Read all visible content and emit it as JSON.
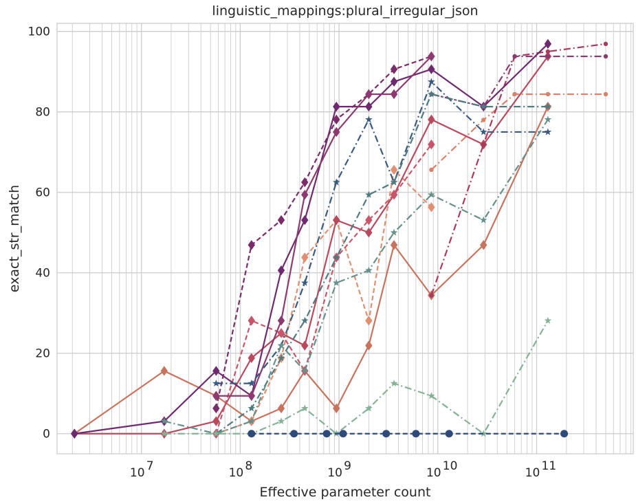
{
  "chart_data": {
    "type": "line",
    "title": "linguistic_mappings:plural_irregular_json",
    "xlabel": "Effective parameter count",
    "ylabel": "exact_str_match",
    "xscale": "log",
    "xlim": [
      1400000.0,
      950000000000.0
    ],
    "ylim": [
      -5,
      102
    ],
    "x_ticks": [
      {
        "value": 10000000.0,
        "mantissa": "10",
        "exp": "7"
      },
      {
        "value": 100000000.0,
        "mantissa": "10",
        "exp": "8"
      },
      {
        "value": 1000000000.0,
        "mantissa": "10",
        "exp": "9"
      },
      {
        "value": 10000000000.0,
        "mantissa": "10",
        "exp": "10"
      },
      {
        "value": 100000000000.0,
        "mantissa": "10",
        "exp": "11"
      }
    ],
    "y_ticks": [
      0,
      20,
      40,
      60,
      80,
      100
    ],
    "grid": true,
    "legend": "none",
    "series": [
      {
        "color": "#c8735e",
        "dash": "solid",
        "marker": "diamond",
        "x": [
          2100000.0,
          17000000.0,
          57000000.0,
          130000000.0,
          260000000.0,
          450000000.0,
          940000000.0,
          2000000000.0,
          3600000000.0,
          8600000000.0,
          29000000000.0,
          130000000000.0
        ],
        "y": [
          0,
          15.6,
          9.4,
          3.1,
          6.3,
          15.6,
          6.3,
          21.9,
          46.9,
          34.4,
          46.9,
          81.3
        ]
      },
      {
        "color": "#e08f70",
        "dash": "dashed",
        "marker": "diamond",
        "x": [
          57000000.0,
          130000000.0,
          260000000.0,
          450000000.0,
          940000000.0,
          2000000000.0,
          3600000000.0,
          8600000000.0
        ],
        "y": [
          0,
          3.1,
          18.8,
          43.8,
          53.1,
          28.1,
          65.6,
          56.3
        ]
      },
      {
        "color": "#d8826a",
        "dash": "dashdot",
        "marker": "circle",
        "x": [
          8600000000.0,
          29000000000.0,
          60000000000.0,
          130000000000.0,
          500000000000.0
        ],
        "y": [
          65.6,
          78.0,
          84.4,
          84.4,
          84.4
        ]
      },
      {
        "color": "#b84a5e",
        "dash": "solid",
        "marker": "diamond",
        "x": [
          2100000.0,
          17000000.0,
          57000000.0,
          130000000.0,
          260000000.0,
          450000000.0,
          940000000.0,
          2000000000.0,
          3600000000.0,
          8600000000.0,
          29000000000.0,
          130000000000.0
        ],
        "y": [
          0,
          0,
          3.1,
          18.8,
          25.0,
          21.9,
          53.1,
          50.0,
          59.4,
          78.1,
          71.9,
          93.8
        ]
      },
      {
        "color": "#c8566a",
        "dash": "dashed",
        "marker": "diamond",
        "x": [
          57000000.0,
          130000000.0,
          260000000.0,
          450000000.0,
          940000000.0,
          2000000000.0,
          3600000000.0,
          8600000000.0
        ],
        "y": [
          0,
          28.1,
          25.0,
          15.6,
          43.8,
          53.1,
          59.4,
          71.9
        ]
      },
      {
        "color": "#a83a5e",
        "dash": "dashdot",
        "marker": "circle",
        "x": [
          8600000000.0,
          29000000000.0,
          60000000000.0,
          130000000000.0,
          500000000000.0
        ],
        "y": [
          34.4,
          71.9,
          93.8,
          95.0,
          96.9
        ]
      },
      {
        "color": "#6e2a6e",
        "dash": "solid",
        "marker": "diamond",
        "x": [
          2100000.0,
          17000000.0,
          57000000.0,
          130000000.0,
          260000000.0,
          450000000.0,
          940000000.0,
          2000000000.0,
          3600000000.0,
          8600000000.0,
          29000000000.0,
          130000000000.0
        ],
        "y": [
          0,
          3.1,
          15.6,
          9.4,
          40.6,
          53.1,
          81.3,
          81.3,
          87.5,
          90.6,
          81.3,
          96.9
        ]
      },
      {
        "color": "#7a2c6a",
        "dash": "dashed",
        "marker": "diamond",
        "x": [
          57000000.0,
          130000000.0,
          260000000.0,
          450000000.0,
          940000000.0,
          2000000000.0,
          3600000000.0,
          8600000000.0
        ],
        "y": [
          6.3,
          46.9,
          53.1,
          62.5,
          78.1,
          84.4,
          90.6,
          93.8
        ]
      },
      {
        "color": "#8c3a70",
        "dash": "solid",
        "marker": "diamond",
        "x": [
          57000000.0,
          130000000.0,
          260000000.0,
          450000000.0,
          940000000.0,
          2000000000.0,
          3600000000.0,
          8600000000.0
        ],
        "y": [
          9.4,
          9.4,
          28.1,
          59.4,
          75.0,
          84.4,
          84.4,
          93.8
        ]
      },
      {
        "color": "#8a3a72",
        "dash": "dashdot",
        "marker": "circle",
        "x": [
          8600000000.0,
          29000000000.0,
          60000000000.0,
          130000000000.0,
          500000000000.0
        ],
        "y": [
          84.4,
          81.3,
          93.8,
          93.8,
          93.8
        ]
      },
      {
        "color": "#3b5a80",
        "dash": "dashdot",
        "marker": "star",
        "x": [
          57000000.0,
          130000000.0,
          260000000.0,
          450000000.0,
          940000000.0,
          2000000000.0,
          3600000000.0,
          8600000000.0,
          29000000000.0,
          130000000000.0
        ],
        "y": [
          12.5,
          12.5,
          21.9,
          37.5,
          62.5,
          78.1,
          62.5,
          87.5,
          75.0,
          75.0
        ]
      },
      {
        "color": "#4e7a80",
        "dash": "dashdot",
        "marker": "star",
        "x": [
          57000000.0,
          130000000.0,
          260000000.0,
          450000000.0,
          940000000.0,
          2000000000.0,
          3600000000.0,
          8600000000.0,
          29000000000.0,
          130000000000.0
        ],
        "y": [
          0,
          6.3,
          18.8,
          28.1,
          43.8,
          59.4,
          62.5,
          84.4,
          81.3,
          81.3
        ]
      },
      {
        "color": "#66908a",
        "dash": "dashdot",
        "marker": "star",
        "x": [
          17000000.0,
          57000000.0,
          130000000.0,
          260000000.0,
          450000000.0,
          940000000.0,
          2000000000.0,
          3600000000.0,
          8600000000.0,
          29000000000.0,
          130000000000.0
        ],
        "y": [
          3.1,
          0,
          3.1,
          21.9,
          15.6,
          37.5,
          40.6,
          50.0,
          59.4,
          53.1,
          78.1
        ]
      },
      {
        "color": "#85b296",
        "dash": "dashdot",
        "marker": "star",
        "x": [
          17000000.0,
          57000000.0,
          130000000.0,
          260000000.0,
          450000000.0,
          940000000.0,
          2000000000.0,
          3600000000.0,
          8600000000.0,
          29000000000.0,
          130000000000.0
        ],
        "y": [
          0,
          0,
          0,
          3.1,
          6.3,
          0,
          6.3,
          12.5,
          9.4,
          0,
          28.1
        ]
      },
      {
        "color": "#2d4a78",
        "dash": "dashed",
        "marker": "circle-large",
        "x": [
          130000000.0,
          350000000.0,
          750000000.0,
          1100000000.0,
          3000000000.0,
          6000000000.0,
          13000000000.0,
          190000000000.0
        ],
        "y": [
          0,
          0,
          0,
          0,
          0,
          0,
          0,
          0
        ]
      }
    ]
  }
}
